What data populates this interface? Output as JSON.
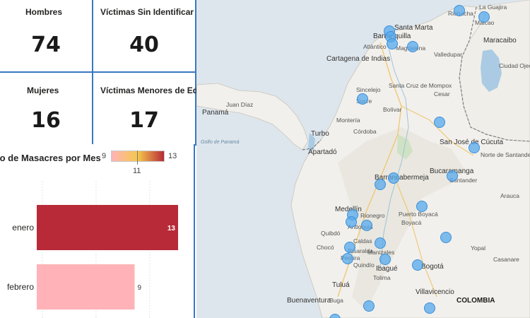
{
  "kpis": [
    {
      "label": "Hombres",
      "value": "74"
    },
    {
      "label": "Víctimas Sin Identificar",
      "value": "40"
    },
    {
      "label": "Mujeres",
      "value": "16"
    },
    {
      "label": "Víctimas Menores de Edad",
      "value": "17"
    }
  ],
  "chart": {
    "title": "lo de Masacres por Mes",
    "legend": {
      "min": "9",
      "mid": "11",
      "max": "13"
    }
  },
  "chart_data": {
    "type": "bar",
    "orientation": "horizontal",
    "categories": [
      "enero",
      "febrero"
    ],
    "values": [
      13,
      9
    ],
    "colors": [
      "#b82a38",
      "#ffb3b8"
    ],
    "color_scale": {
      "min": 9,
      "mid": 11,
      "max": 13,
      "min_color": "#ffb3b8",
      "mid_color": "#f5c84c",
      "max_color": "#b82a38"
    },
    "data_labels": [
      "13",
      "9"
    ]
  },
  "map": {
    "country": "COLOMBIA",
    "labels": [
      "Santa Marta",
      "Barranquilla",
      "Atlántico",
      "Magdalena",
      "Riohacha",
      "Maicao",
      "La Guajira",
      "Valledupar",
      "Maracaibo",
      "Ciudad Ojeda",
      "Cartagena de Indias",
      "Sincelejo",
      "Santa Cruz de Mompox",
      "Montería",
      "Córdoba",
      "Turbo",
      "Apartadó",
      "Panamá",
      "Juan Díaz",
      "Golfo de Panamá",
      "Barrancabermeja",
      "Bucaramanga",
      "Santander",
      "San José de Cúcuta",
      "Norte de Santander",
      "Medellín",
      "Rionegro",
      "Antioquia",
      "Puerto Boyacá",
      "Boyacá",
      "Caldas",
      "Manizales",
      "Pereira",
      "Ibagué",
      "Bogotá",
      "Quibdó",
      "Chocó",
      "Tuluá",
      "Buga",
      "Buenaventura",
      "Villavicencio",
      "Yopal",
      "Casanare",
      "Arauca",
      "Cesar",
      "Bolívar",
      "Sucre",
      "Tolima",
      "Risaralda",
      "Quindío"
    ]
  }
}
